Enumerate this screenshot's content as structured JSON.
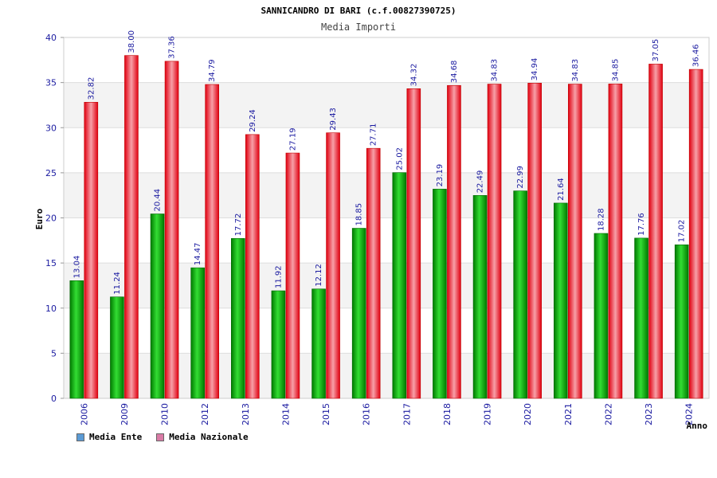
{
  "chart_data": {
    "type": "bar",
    "title": "SANNICANDRO DI BARI (c.f.00827390725)",
    "subtitle": "Media Importi",
    "ylabel": "Euro",
    "xlabel": "Anno",
    "ylim": [
      0,
      40
    ],
    "yticks": [
      0,
      5,
      10,
      15,
      20,
      25,
      30,
      35,
      40
    ],
    "grid": true,
    "legend_position": "bottom-left",
    "categories": [
      "2006",
      "2009",
      "2010",
      "2012",
      "2013",
      "2014",
      "2015",
      "2016",
      "2017",
      "2018",
      "2019",
      "2020",
      "2021",
      "2022",
      "2023",
      "2024"
    ],
    "series": [
      {
        "name": "Media Ente",
        "bar_color": "#00b400",
        "values": [
          13.04,
          11.24,
          20.44,
          14.47,
          17.72,
          11.92,
          12.12,
          18.85,
          25.02,
          23.19,
          22.49,
          22.99,
          21.64,
          18.28,
          17.76,
          17.02
        ],
        "labels": [
          "13.04",
          "11.24",
          "20.44",
          "14.47",
          "17.72",
          "11.92",
          "12.12",
          "18.85",
          "25.02",
          "23.19",
          "22.49",
          "22.99",
          "21.64",
          "18.28",
          "17.76",
          "17.02"
        ]
      },
      {
        "name": "Media Nazionale",
        "bar_color": "#ee1c24",
        "values": [
          32.82,
          38.0,
          37.36,
          34.79,
          29.24,
          27.19,
          29.43,
          27.71,
          34.32,
          34.68,
          34.83,
          34.94,
          34.83,
          34.85,
          37.05,
          36.46
        ],
        "labels": [
          "32.82",
          "38.00",
          "37.36",
          "34.79",
          "29.24",
          "27.19",
          "29.43",
          "27.71",
          "34.32",
          "34.68",
          "34.83",
          "34.94",
          "34.83",
          "34.85",
          "37.05",
          "36.46"
        ]
      }
    ]
  },
  "legend": {
    "items": [
      {
        "label": "Media Ente",
        "color": "#5b9bd5"
      },
      {
        "label": "Media Nazionale",
        "color": "#d97ba6"
      }
    ]
  }
}
